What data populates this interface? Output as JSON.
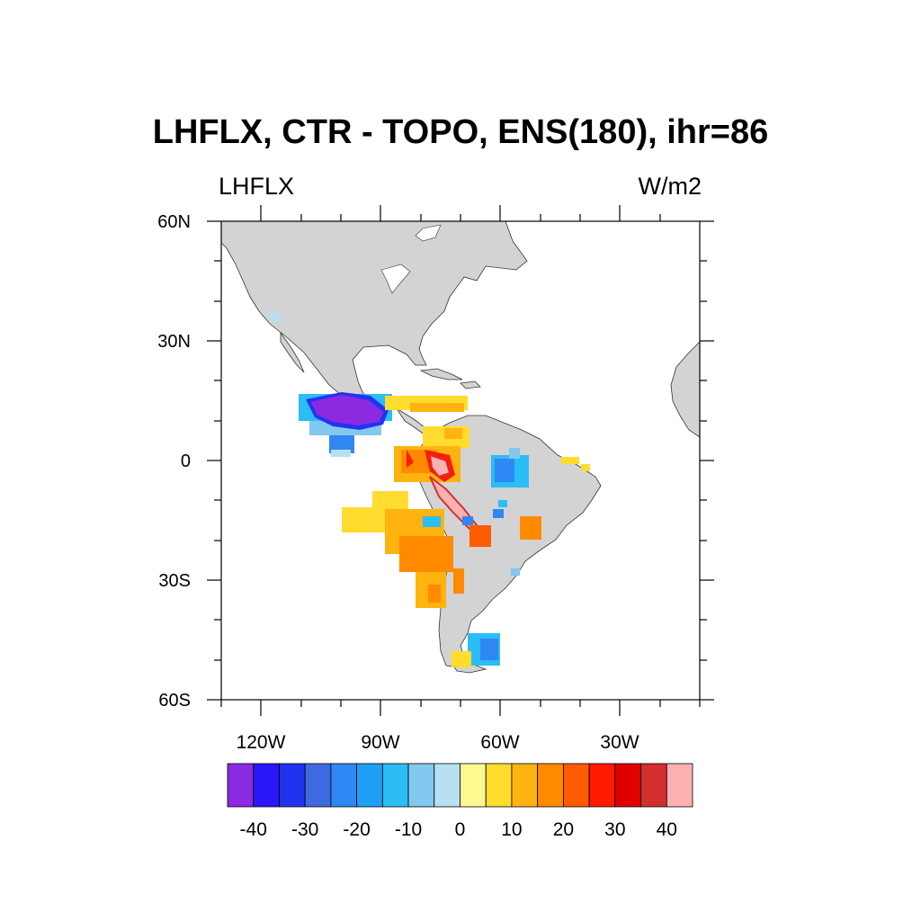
{
  "title": "LHFLX, CTR - TOPO, ENS(180), ihr=86",
  "left_string": "LHFLX",
  "right_string": "W/m2",
  "lat_labels": [
    "60N",
    "30N",
    "0",
    "30S",
    "60S"
  ],
  "lon_labels": [
    "120W",
    "90W",
    "60W",
    "30W"
  ],
  "colorbar": {
    "colors": [
      "#8a2be2",
      "#2a16f7",
      "#2233f0",
      "#3e6ae0",
      "#2f87f4",
      "#1ea0f7",
      "#2bbdf5",
      "#83c8ee",
      "#b7e0f2",
      "#fff891",
      "#ffdc2e",
      "#ffb30f",
      "#ff8a00",
      "#ff5b00",
      "#ff1a00",
      "#e00000",
      "#d32f2f",
      "#ffb1b1"
    ],
    "labels": [
      "-40",
      "-30",
      "-20",
      "-10",
      "0",
      "10",
      "20",
      "30",
      "40"
    ]
  }
}
